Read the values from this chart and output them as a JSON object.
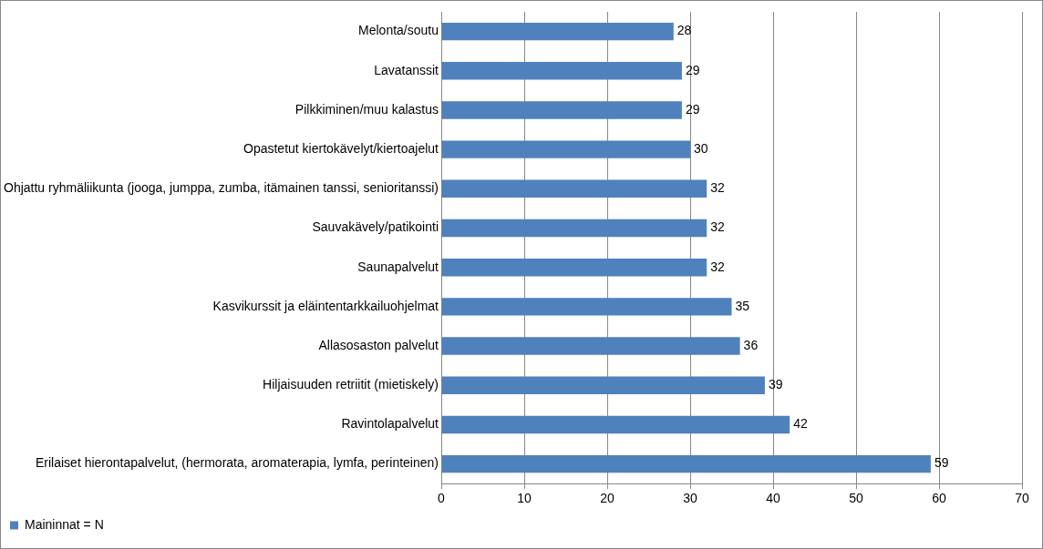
{
  "chart_data": {
    "type": "bar",
    "orientation": "horizontal",
    "categories": [
      "Melonta/soutu",
      "Lavatanssit",
      "Pilkkiminen/muu kalastus",
      "Opastetut kiertokävelyt/kiertoajelut",
      "Ohjattu ryhmäliikunta (jooga, jumppa, zumba, itämainen tanssi, senioritanssi)",
      "Sauvakävely/patikointi",
      "Saunapalvelut",
      "Kasvikurssit ja eläintentarkkailuohjelmat",
      "Allasosaston palvelut",
      "Hiljaisuuden retriitit (mietiskely)",
      "Ravintolapalvelut",
      "Erilaiset hierontapalvelut, (hermorata, aromaterapia, lymfa, perinteinen)"
    ],
    "series": [
      {
        "name": "Maininnat = N",
        "color": "#4f81bd",
        "values": [
          28,
          29,
          29,
          30,
          32,
          32,
          32,
          35,
          36,
          39,
          42,
          59
        ]
      }
    ],
    "xlim": [
      0,
      70
    ],
    "xticks": [
      0,
      10,
      20,
      30,
      40,
      50,
      60,
      70
    ],
    "grid": "x",
    "legend": "bottom left",
    "data_labels": true
  }
}
